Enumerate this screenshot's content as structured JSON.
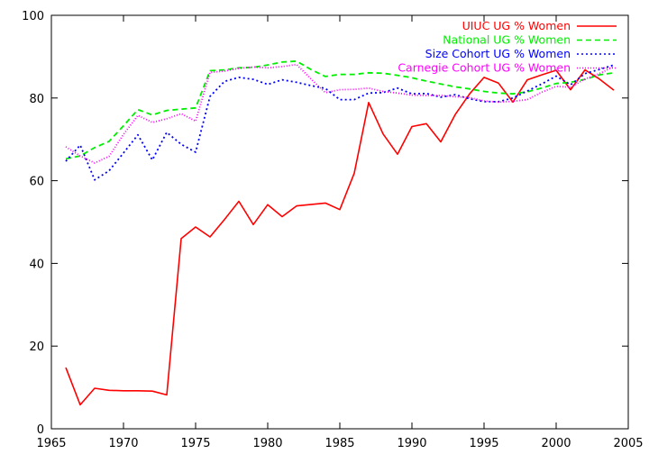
{
  "chart_data": {
    "type": "line",
    "title": "",
    "xlabel": "",
    "ylabel": "",
    "xlim": [
      1965,
      2005
    ],
    "ylim": [
      0,
      100
    ],
    "x_ticks": [
      1965,
      1970,
      1975,
      1980,
      1985,
      1990,
      1995,
      2000,
      2005
    ],
    "y_ticks": [
      0,
      20,
      40,
      60,
      80,
      100
    ],
    "x_tick_labels": [
      "1965",
      "1970",
      "1975",
      "1980",
      "1985",
      "1990",
      "1995",
      "2000",
      "2005"
    ],
    "y_tick_labels": [
      "0",
      "20",
      "40",
      "60",
      "80",
      "100"
    ],
    "grid": false,
    "legend_position": "top-right",
    "series": [
      {
        "name": "UIUC UG % Women",
        "color": "#ff0000",
        "dash": "solid",
        "x": [
          1966,
          1967,
          1968,
          1969,
          1970,
          1971,
          1972,
          1973,
          1974,
          1975,
          1976,
          1977,
          1978,
          1979,
          1980,
          1981,
          1982,
          1984,
          1985,
          1986,
          1987,
          1988,
          1989,
          1990,
          1991,
          1992,
          1993,
          1994,
          1995,
          1996,
          1997,
          1998,
          1999,
          2000,
          2001,
          2002,
          2003,
          2004
        ],
        "y": [
          14.8,
          5.8,
          9.8,
          9.3,
          9.2,
          9.2,
          9.1,
          8.2,
          46.0,
          48.8,
          46.4,
          50.6,
          55.0,
          49.4,
          54.2,
          51.3,
          53.9,
          54.6,
          53.0,
          61.8,
          78.9,
          71.3,
          66.4,
          73.1,
          73.8,
          69.4,
          76.0,
          81.0,
          85.0,
          83.6,
          79.0,
          84.4,
          85.6,
          86.7,
          82.0,
          86.8,
          84.6,
          81.9
        ]
      },
      {
        "name": "National UG % Women",
        "color": "#00ee00",
        "dash": "6,4",
        "x": [
          1966,
          1967,
          1968,
          1969,
          1970,
          1971,
          1972,
          1973,
          1974,
          1975,
          1976,
          1977,
          1978,
          1979,
          1980,
          1981,
          1982,
          1983,
          1984,
          1985,
          1986,
          1987,
          1988,
          1989,
          1990,
          1991,
          1992,
          1993,
          1994,
          1995,
          1996,
          1997,
          1998,
          1999,
          2000,
          2001,
          2002,
          2003,
          2004
        ],
        "y": [
          65.3,
          66.0,
          68.0,
          69.5,
          73.3,
          77.2,
          75.9,
          77.0,
          77.3,
          77.6,
          86.6,
          86.8,
          87.3,
          87.4,
          88.0,
          88.7,
          88.9,
          86.9,
          85.2,
          85.7,
          85.7,
          86.1,
          86.0,
          85.5,
          84.9,
          84.1,
          83.4,
          82.7,
          82.2,
          81.6,
          81.2,
          81.0,
          81.5,
          82.4,
          83.5,
          83.8,
          84.5,
          85.6,
          86.1
        ]
      },
      {
        "name": "Size Cohort UG % Women",
        "color": "#0000ff",
        "dash": "2,3",
        "x": [
          1966,
          1967,
          1968,
          1969,
          1970,
          1971,
          1972,
          1973,
          1974,
          1975,
          1976,
          1977,
          1978,
          1979,
          1980,
          1981,
          1982,
          1983,
          1984,
          1985,
          1986,
          1987,
          1988,
          1989,
          1990,
          1991,
          1992,
          1993,
          1994,
          1995,
          1996,
          1997,
          1998,
          1999,
          2000,
          2001,
          2002,
          2003,
          2004
        ],
        "y": [
          64.7,
          68.6,
          60.2,
          62.4,
          66.7,
          71.1,
          65.0,
          71.7,
          68.8,
          66.9,
          80.4,
          84.0,
          85.0,
          84.5,
          83.3,
          84.4,
          83.8,
          83.0,
          82.3,
          79.6,
          79.6,
          81.2,
          81.3,
          82.4,
          81.0,
          81.1,
          80.2,
          80.8,
          79.8,
          79.1,
          79.1,
          80.0,
          81.7,
          83.4,
          85.3,
          83.2,
          85.9,
          86.9,
          88.0
        ]
      },
      {
        "name": "Carnegie Cohort UG % Women",
        "color": "#ff00ff",
        "dash": "1,2",
        "x": [
          1966,
          1967,
          1968,
          1969,
          1970,
          1971,
          1972,
          1973,
          1974,
          1975,
          1976,
          1977,
          1978,
          1979,
          1980,
          1981,
          1982,
          1983,
          1984,
          1985,
          1986,
          1987,
          1988,
          1989,
          1990,
          1991,
          1992,
          1993,
          1994,
          1995,
          1996,
          1997,
          1998,
          1999,
          2000,
          2001,
          2002,
          2003,
          2004
        ],
        "y": [
          68.2,
          66.0,
          64.3,
          65.9,
          71.2,
          75.8,
          74.1,
          75.0,
          76.2,
          74.4,
          86.2,
          86.5,
          87.2,
          87.5,
          87.3,
          87.6,
          88.1,
          84.6,
          81.3,
          82.0,
          82.1,
          82.4,
          81.6,
          81.2,
          80.7,
          80.6,
          80.6,
          80.3,
          80.1,
          79.3,
          79.0,
          79.2,
          79.6,
          81.4,
          82.8,
          82.6,
          84.6,
          85.9,
          87.6
        ]
      }
    ]
  }
}
